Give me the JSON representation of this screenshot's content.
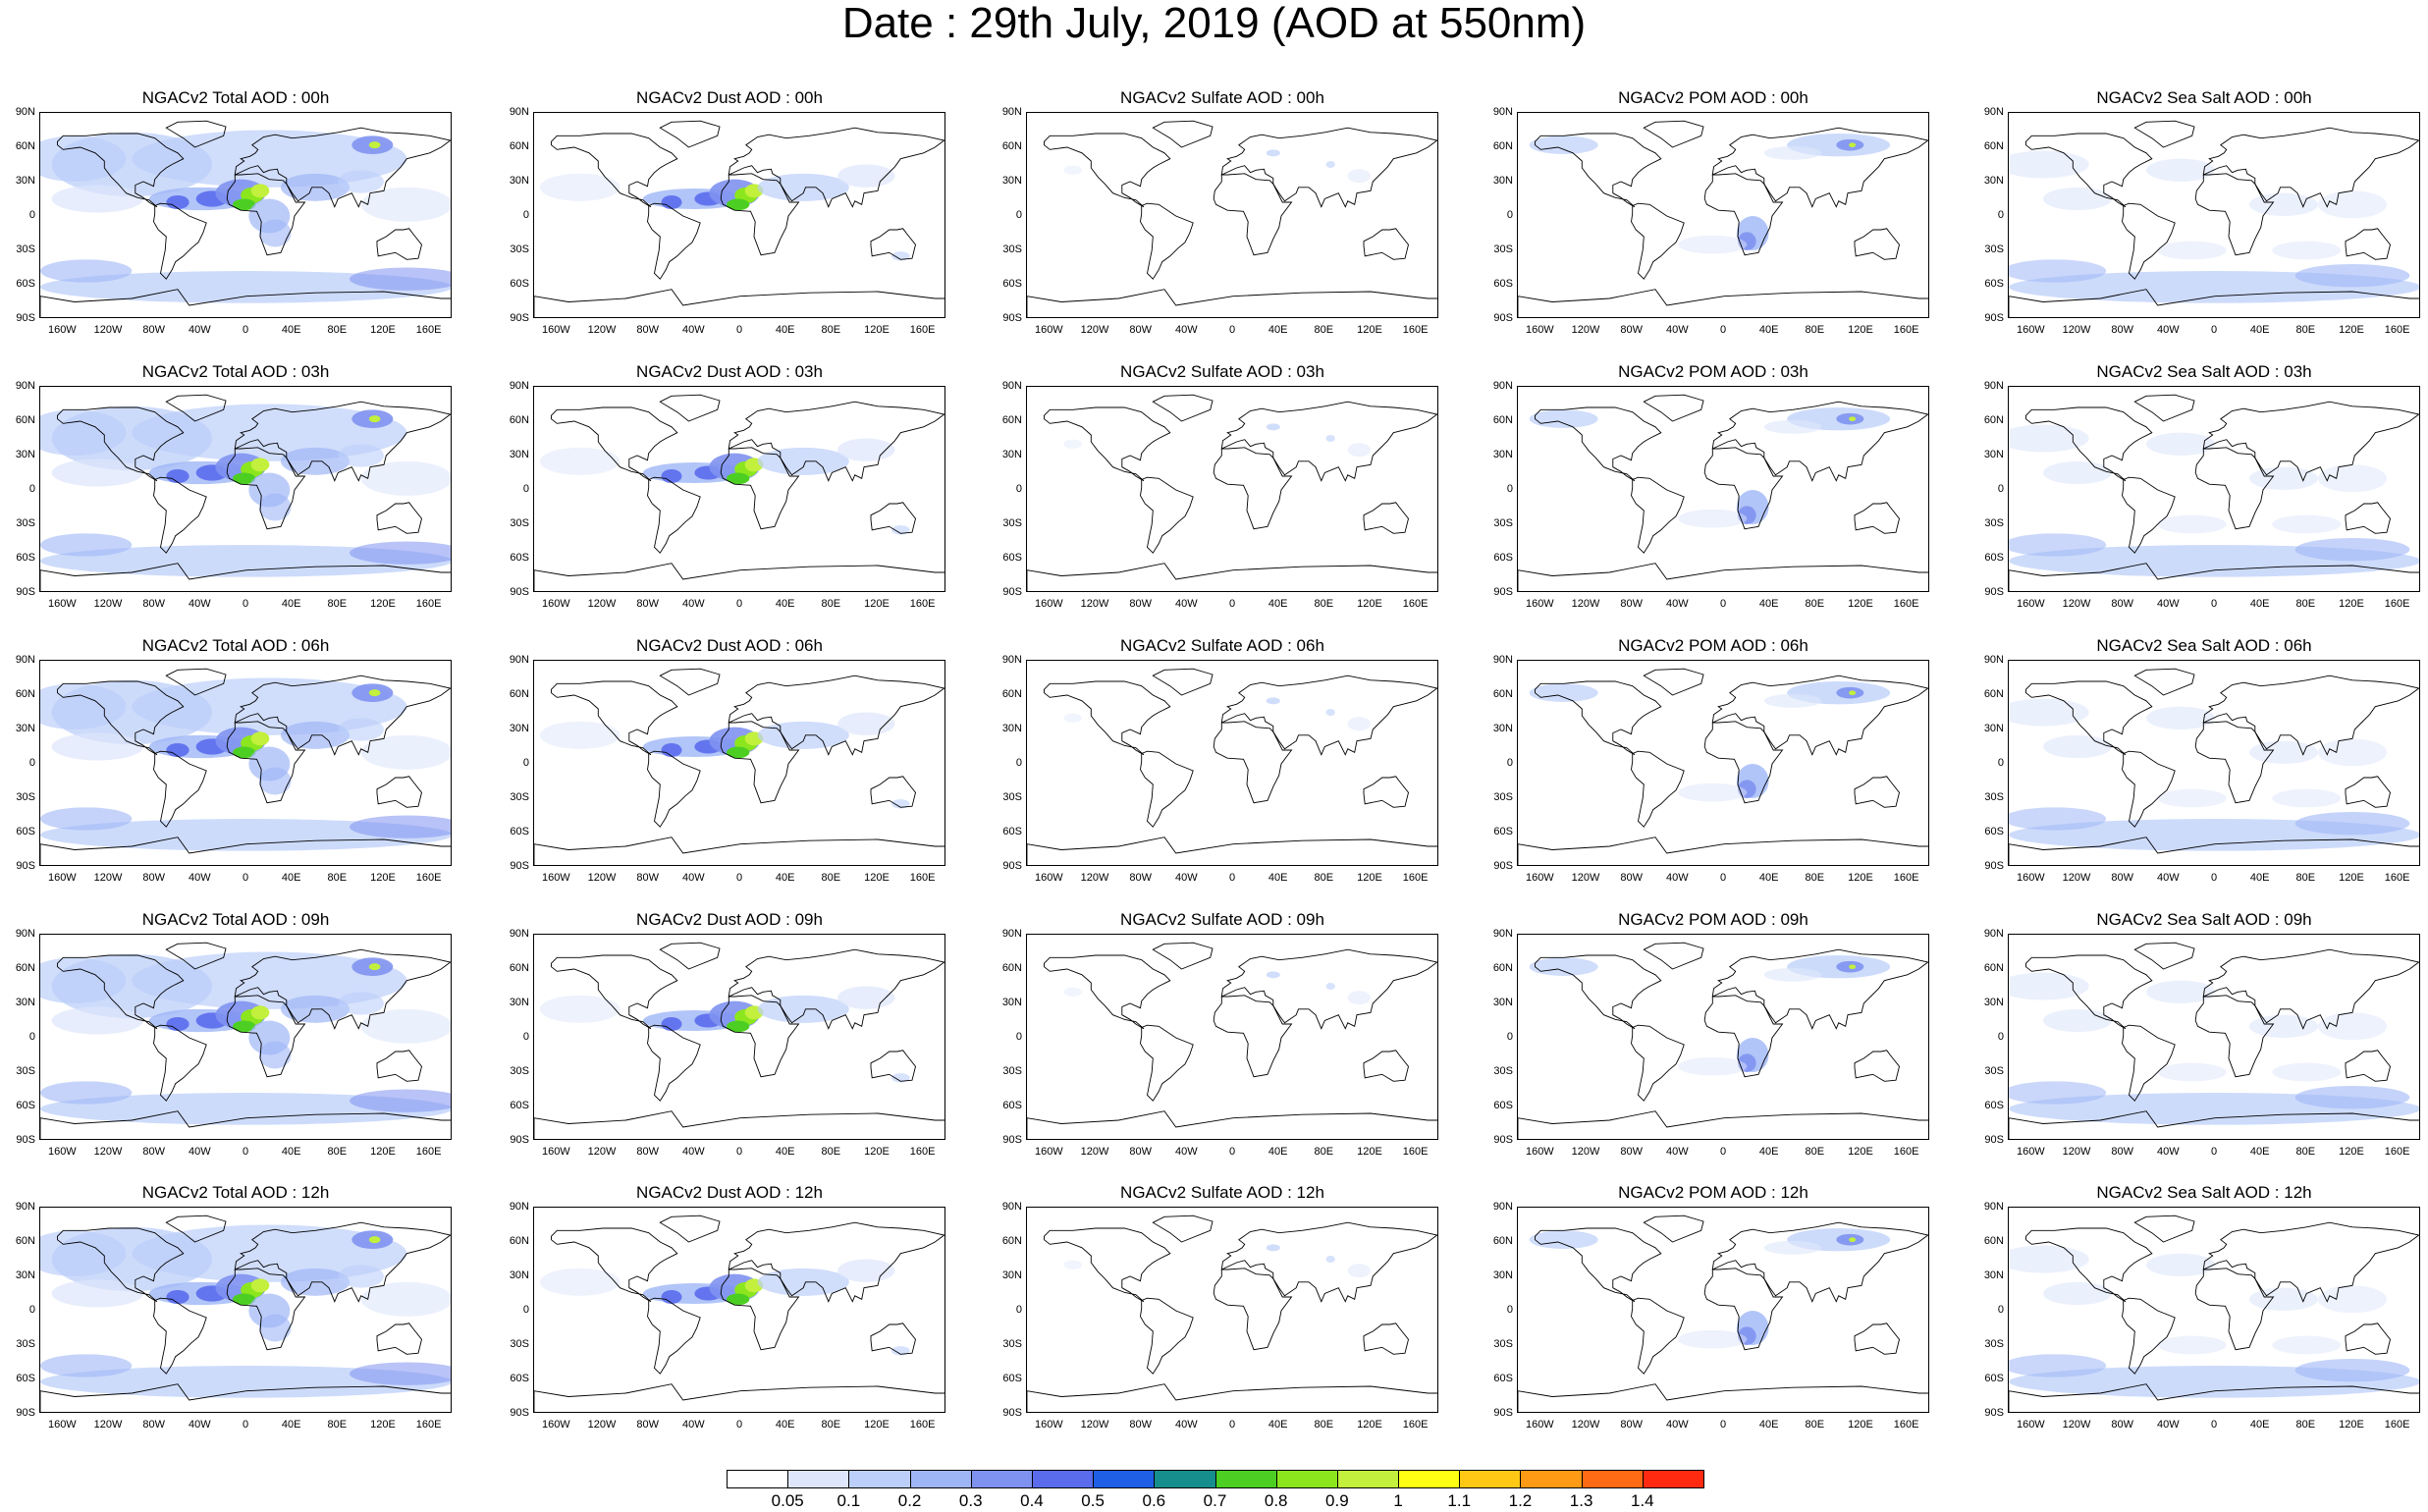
{
  "title": "Date : 29th July, 2019 (AOD at 550nm)",
  "panels": [
    [
      "NGACv2 Total AOD : 00h",
      "NGACv2 Dust AOD : 00h",
      "NGACv2 Sulfate AOD : 00h",
      "NGACv2 POM AOD : 00h",
      "NGACv2 Sea Salt AOD : 00h"
    ],
    [
      "NGACv2 Total AOD : 03h",
      "NGACv2 Dust AOD : 03h",
      "NGACv2 Sulfate AOD : 03h",
      "NGACv2 POM AOD : 03h",
      "NGACv2 Sea Salt AOD : 03h"
    ],
    [
      "NGACv2 Total AOD : 06h",
      "NGACv2 Dust AOD : 06h",
      "NGACv2 Sulfate AOD : 06h",
      "NGACv2 POM AOD : 06h",
      "NGACv2 Sea Salt AOD : 06h"
    ],
    [
      "NGACv2 Total AOD : 09h",
      "NGACv2 Dust AOD : 09h",
      "NGACv2 Sulfate AOD : 09h",
      "NGACv2 POM AOD : 09h",
      "NGACv2 Sea Salt  AOD : 09h"
    ],
    [
      "NGACv2 Total AOD : 12h",
      "NGACv2 Dust AOD : 12h",
      "NGACv2 Sulfate AOD : 12h",
      "NGACv2 POM  AOD : 12h",
      "NGACv2 Sea Salt  AOD : 12h"
    ]
  ],
  "lat_labels": [
    "90N",
    "60N",
    "30N",
    "0",
    "30S",
    "60S",
    "90S"
  ],
  "lon_labels": [
    "160W",
    "120W",
    "80W",
    "40W",
    "0",
    "40E",
    "80E",
    "120E",
    "160E"
  ],
  "colorbar": {
    "labels": [
      "0.05",
      "0.1",
      "0.2",
      "0.3",
      "0.4",
      "0.5",
      "0.6",
      "0.7",
      "0.8",
      "0.9",
      "1",
      "1.1",
      "1.2",
      "1.3",
      "1.4"
    ],
    "colors": [
      "#ffffff",
      "#dde6fb",
      "#bccffa",
      "#9fb6f6",
      "#7f92f0",
      "#5a6cec",
      "#1f5fe6",
      "#178e8e",
      "#4ccf22",
      "#8ce61e",
      "#c2f03c",
      "#ffff14",
      "#ffc814",
      "#ff9a14",
      "#ff6a14",
      "#ff2a10"
    ]
  },
  "aerosol_types": [
    "total",
    "dust",
    "sulfate",
    "pom",
    "seasalt"
  ]
}
